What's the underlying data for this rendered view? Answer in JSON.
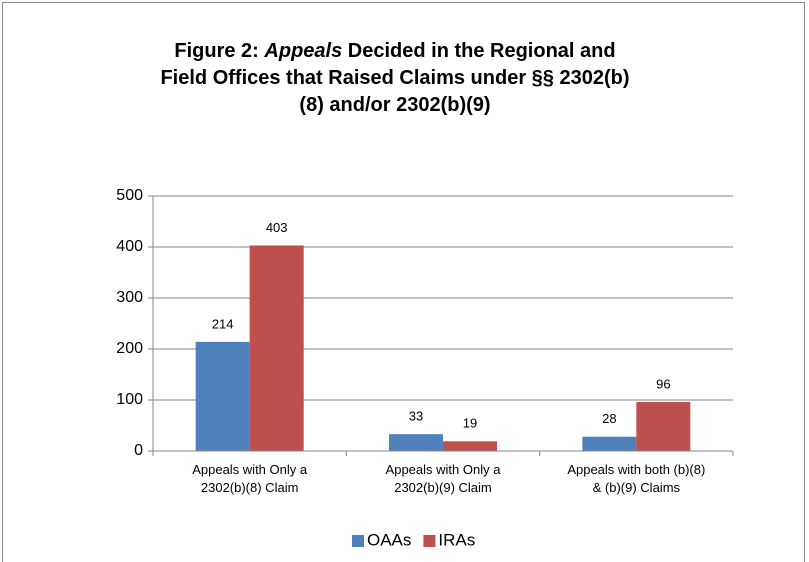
{
  "chart_data": {
    "type": "bar",
    "title": [
      {
        "text": "Figure 2: "
      },
      {
        "text": "Appeals",
        "italic": true
      },
      {
        "text": " Decided in the Regional and Field Offices that Raised Claims under §§ 2302(b)(8) and/or 2302(b)(9)"
      }
    ],
    "categories": [
      "Appeals with Only a 2302(b)(8) Claim",
      "Appeals with Only a 2302(b)(9) Claim",
      "Appeals with both (b)(8) & (b)(9) Claims"
    ],
    "series": [
      {
        "name": "OAAs",
        "color": "#4f81bd",
        "values": [
          214,
          33,
          28
        ]
      },
      {
        "name": "IRAs",
        "color": "#c0504d",
        "values": [
          403,
          19,
          96
        ]
      }
    ],
    "ylim": [
      0,
      500
    ],
    "yticks": [
      0,
      100,
      200,
      300,
      400,
      500
    ],
    "grid": true,
    "legend": "bottom"
  }
}
